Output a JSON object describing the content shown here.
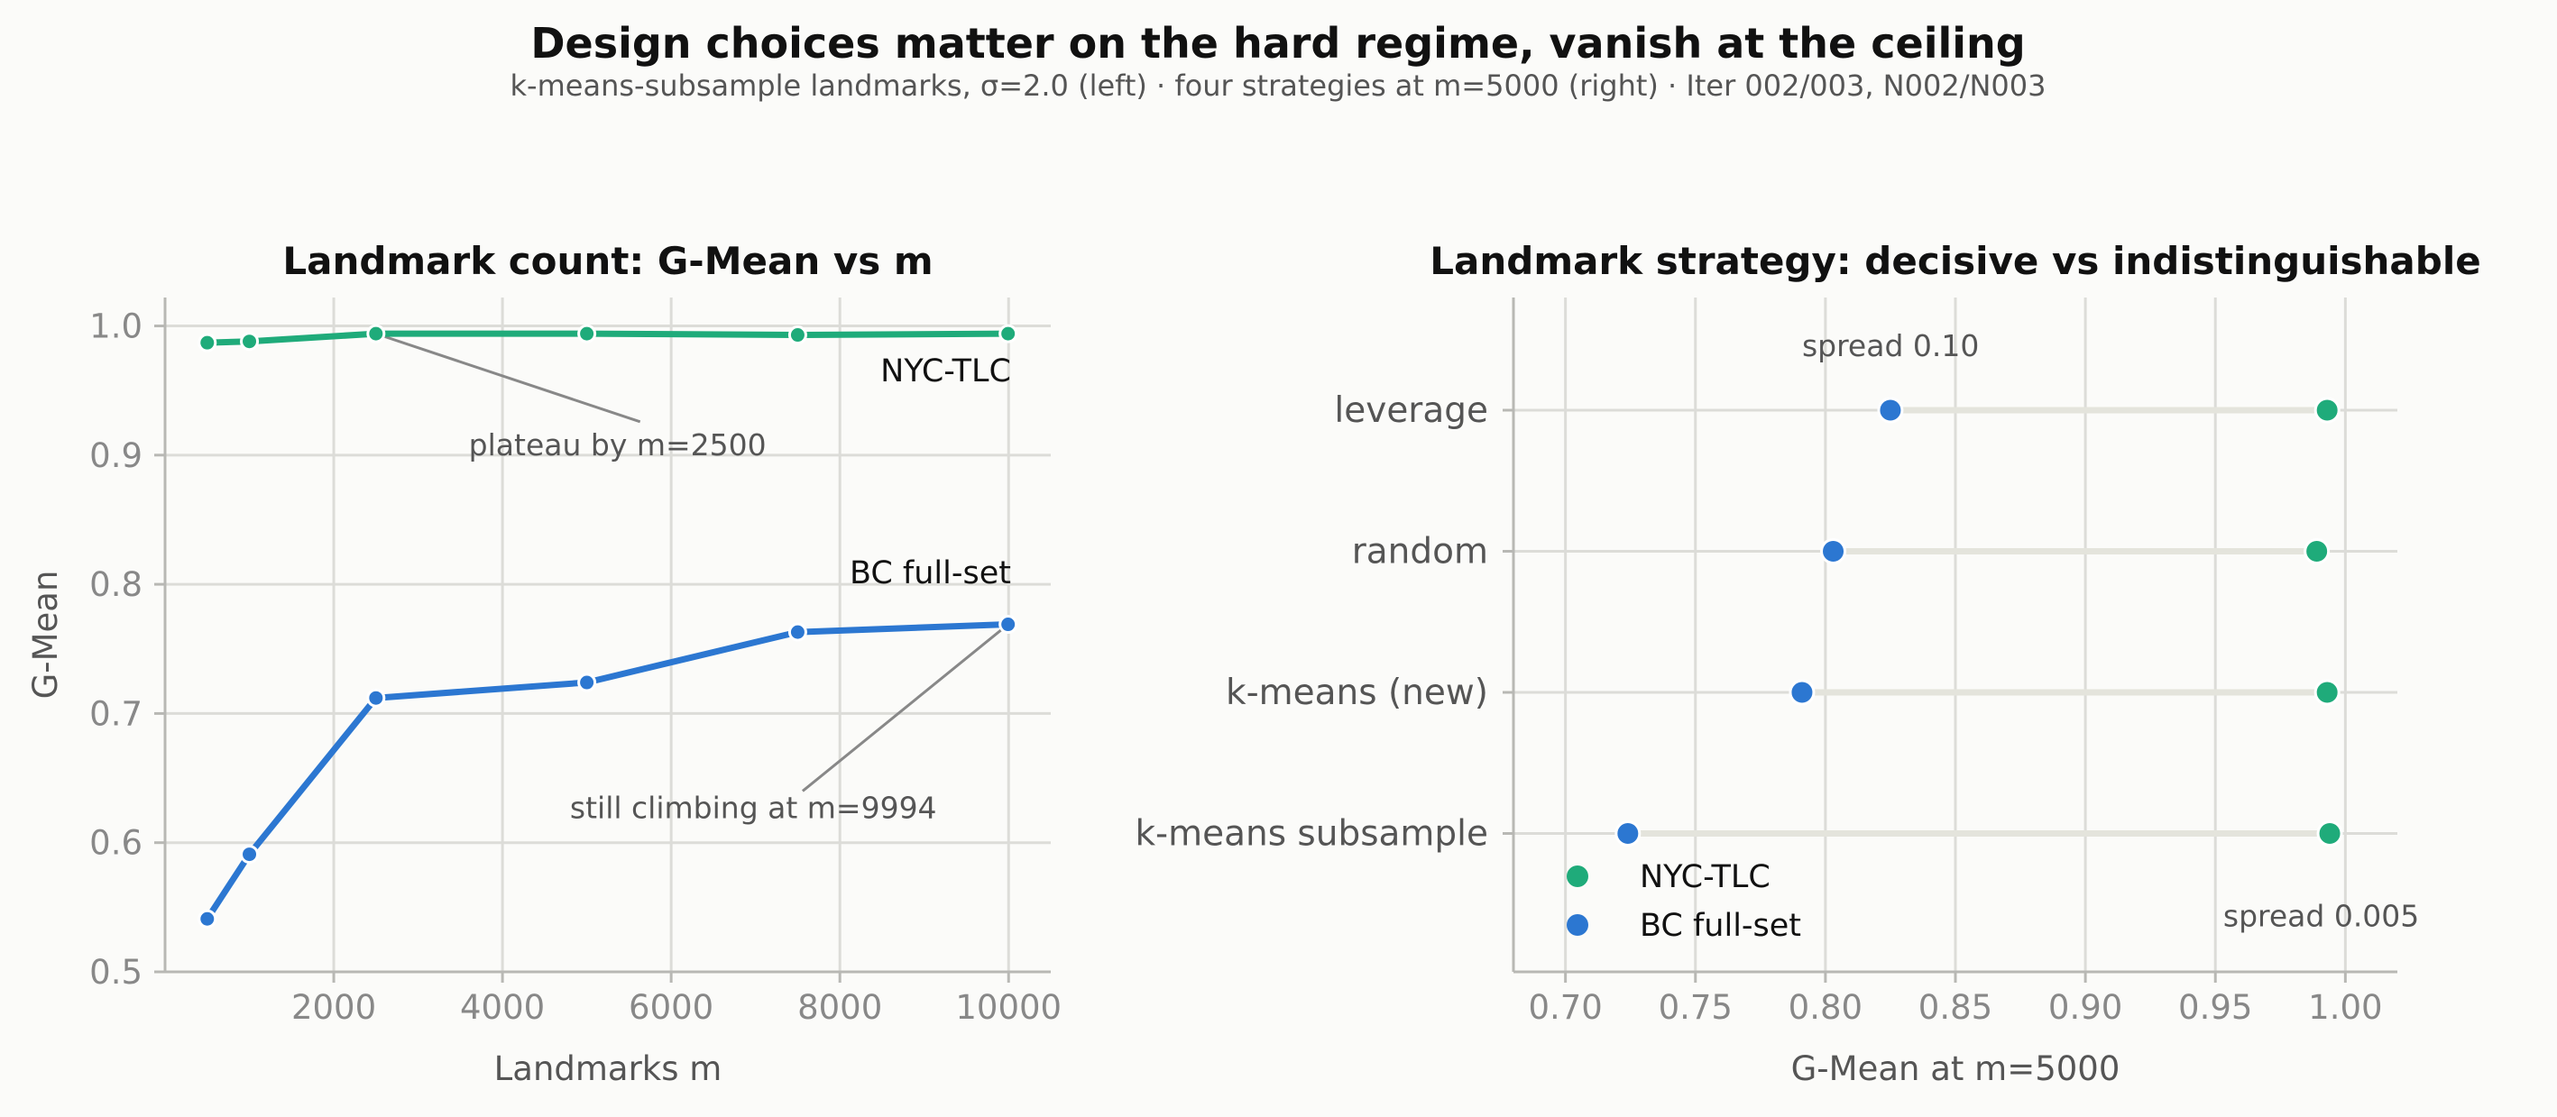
{
  "figure": {
    "title": "Design choices matter on the hard regime, vanish at the ceiling",
    "subtitle": "k-means-subsample landmarks, σ=2.0 (left) · four strategies at m=5000 (right) · Iter 002/003, N002/N003"
  },
  "colors": {
    "nyc": "#1fab7a",
    "bc": "#2c77d1",
    "grid": "#dcdcd8",
    "axis": "#b8b8b4",
    "connector": "#e4e4dc",
    "annotation_line": "#888888"
  },
  "chart_data": [
    {
      "type": "line",
      "title": "Landmark count: G-Mean vs m",
      "xlabel": "Landmarks m",
      "ylabel": "G-Mean",
      "xlim": [
        0,
        10500
      ],
      "ylim": [
        0.5,
        1.022
      ],
      "xticks": [
        2000,
        4000,
        6000,
        8000,
        10000
      ],
      "yticks": [
        0.5,
        0.6,
        0.7,
        0.8,
        0.9,
        1.0
      ],
      "grid": true,
      "series": [
        {
          "name": "NYC-TLC",
          "color": "#1fab7a",
          "x": [
            500,
            1000,
            2500,
            5000,
            7500,
            9994
          ],
          "y": [
            0.987,
            0.988,
            0.994,
            0.994,
            0.993,
            0.994
          ]
        },
        {
          "name": "BC full-set",
          "color": "#2c77d1",
          "x": [
            500,
            1000,
            2500,
            5000,
            7500,
            9994
          ],
          "y": [
            0.541,
            0.591,
            0.712,
            0.724,
            0.763,
            0.769
          ]
        }
      ],
      "annotations": [
        {
          "text": "plateau by m=2500",
          "x": 2500,
          "y": 0.994,
          "text_x": 3600,
          "text_y": 0.9
        },
        {
          "text": "still climbing at m=9994",
          "x": 9994,
          "y": 0.769,
          "text_x": 4800,
          "text_y": 0.619
        }
      ]
    },
    {
      "type": "scatter",
      "title": "Landmark strategy: decisive vs indistinguishable",
      "xlabel": "G-Mean at m=5000",
      "xlim": [
        0.68,
        1.02
      ],
      "xticks": [
        0.7,
        0.75,
        0.8,
        0.85,
        0.9,
        0.95,
        1.0
      ],
      "xtick_labels": [
        "0.70",
        "0.75",
        "0.80",
        "0.85",
        "0.90",
        "0.95",
        "1.00"
      ],
      "categories": [
        "leverage",
        "random",
        "k-means (new)",
        "k-means subsample"
      ],
      "grid": true,
      "legend": "bottom-left",
      "series": [
        {
          "name": "NYC-TLC",
          "color": "#1fab7a",
          "values": [
            0.993,
            0.989,
            0.993,
            0.994
          ]
        },
        {
          "name": "BC full-set",
          "color": "#2c77d1",
          "values": [
            0.825,
            0.803,
            0.791,
            0.724
          ]
        }
      ],
      "annotations": [
        {
          "text": "spread 0.10",
          "x": 0.791,
          "category_offset": -0.46
        },
        {
          "text": "spread 0.005",
          "x": 0.953,
          "category_offset": 3.58
        }
      ]
    }
  ]
}
